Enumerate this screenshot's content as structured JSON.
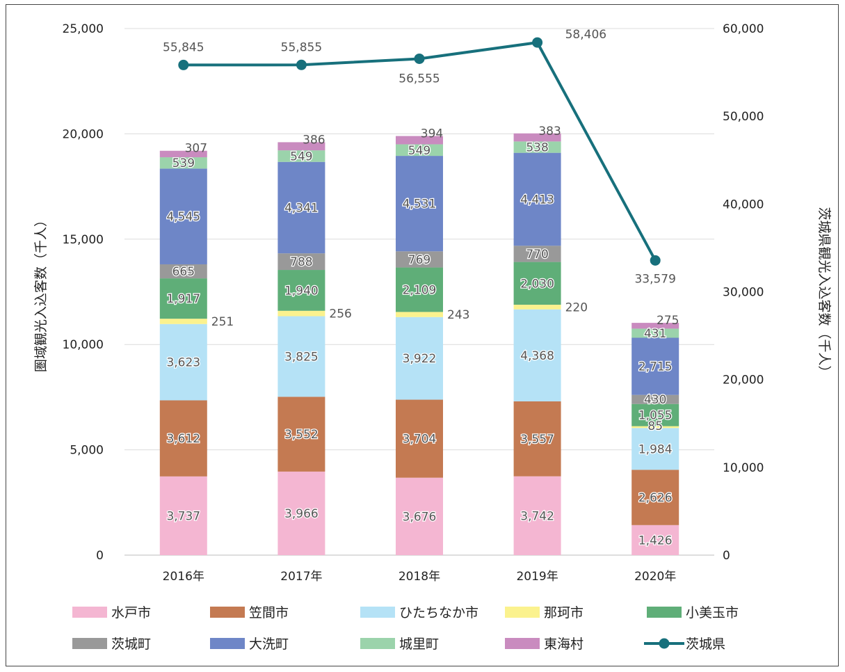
{
  "chart_data": {
    "type": "bar",
    "stacked": true,
    "categories": [
      "2016年",
      "2017年",
      "2018年",
      "2019年",
      "2020年"
    ],
    "series": [
      {
        "name": "水戸市",
        "color": "#f4b6d2",
        "values": [
          3737,
          3966,
          3676,
          3742,
          1426
        ]
      },
      {
        "name": "笠間市",
        "color": "#c47a52",
        "values": [
          3612,
          3552,
          3704,
          3557,
          2626
        ]
      },
      {
        "name": "ひたちなか市",
        "color": "#b5e2f6",
        "values": [
          3623,
          3825,
          3922,
          4368,
          1984
        ]
      },
      {
        "name": "那珂市",
        "color": "#fbf28e",
        "values": [
          251,
          256,
          243,
          220,
          85
        ]
      },
      {
        "name": "小美玉市",
        "color": "#5fae78",
        "values": [
          1917,
          1940,
          2109,
          2030,
          1055
        ]
      },
      {
        "name": "茨城町",
        "color": "#999999",
        "values": [
          665,
          788,
          769,
          770,
          430
        ]
      },
      {
        "name": "大洗町",
        "color": "#6e86c7",
        "values": [
          4545,
          4341,
          4531,
          4413,
          2715
        ]
      },
      {
        "name": "城里町",
        "color": "#9bd3ab",
        "values": [
          539,
          549,
          549,
          538,
          431
        ]
      },
      {
        "name": "東海村",
        "color": "#c98bbf",
        "values": [
          307,
          386,
          394,
          383,
          275
        ]
      }
    ],
    "line_series": {
      "name": "茨城県",
      "color": "#17707c",
      "axis": "right",
      "values": [
        55845,
        55855,
        56555,
        58406,
        33579
      ]
    },
    "ylabel": "圏域観光入込客数（千人）",
    "ylabel_right": "茨城県観光入込客数（千人）",
    "ylim": [
      0,
      25000
    ],
    "ylim_right": [
      0,
      60000
    ],
    "yticks": [
      "0",
      "5,000",
      "10,000",
      "15,000",
      "20,000",
      "25,000"
    ],
    "yticks_right": [
      "0",
      "10,000",
      "20,000",
      "30,000",
      "40,000",
      "50,000",
      "60,000"
    ],
    "grid": true,
    "legend_position": "bottom"
  }
}
